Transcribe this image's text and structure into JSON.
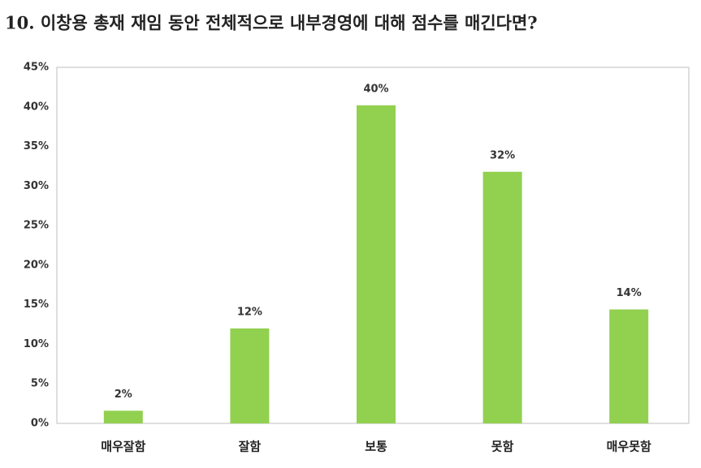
{
  "chart_data": {
    "type": "bar",
    "title": "10. 이창용 총재 재임 동안 전체적으로 내부경영에 대해 점수를 매긴다면?",
    "categories": [
      "매우잘함",
      "잘함",
      "보통",
      "못함",
      "매우못함"
    ],
    "values": [
      1.6,
      12,
      40.2,
      31.8,
      14.4
    ],
    "value_labels": [
      "2%",
      "12%",
      "40%",
      "32%",
      "14%"
    ],
    "color": "#92d050",
    "ylim": [
      0,
      45
    ],
    "yticks": [
      {
        "value": 0,
        "label": "0%"
      },
      {
        "value": 5,
        "label": "5%"
      },
      {
        "value": 10,
        "label": "10%"
      },
      {
        "value": 15,
        "label": "15%"
      },
      {
        "value": 20,
        "label": "20%"
      },
      {
        "value": 25,
        "label": "25%"
      },
      {
        "value": 30,
        "label": "30%"
      },
      {
        "value": 35,
        "label": "35%"
      },
      {
        "value": 40,
        "label": "40%"
      },
      {
        "value": 45,
        "label": "45%"
      }
    ],
    "grid": false
  }
}
